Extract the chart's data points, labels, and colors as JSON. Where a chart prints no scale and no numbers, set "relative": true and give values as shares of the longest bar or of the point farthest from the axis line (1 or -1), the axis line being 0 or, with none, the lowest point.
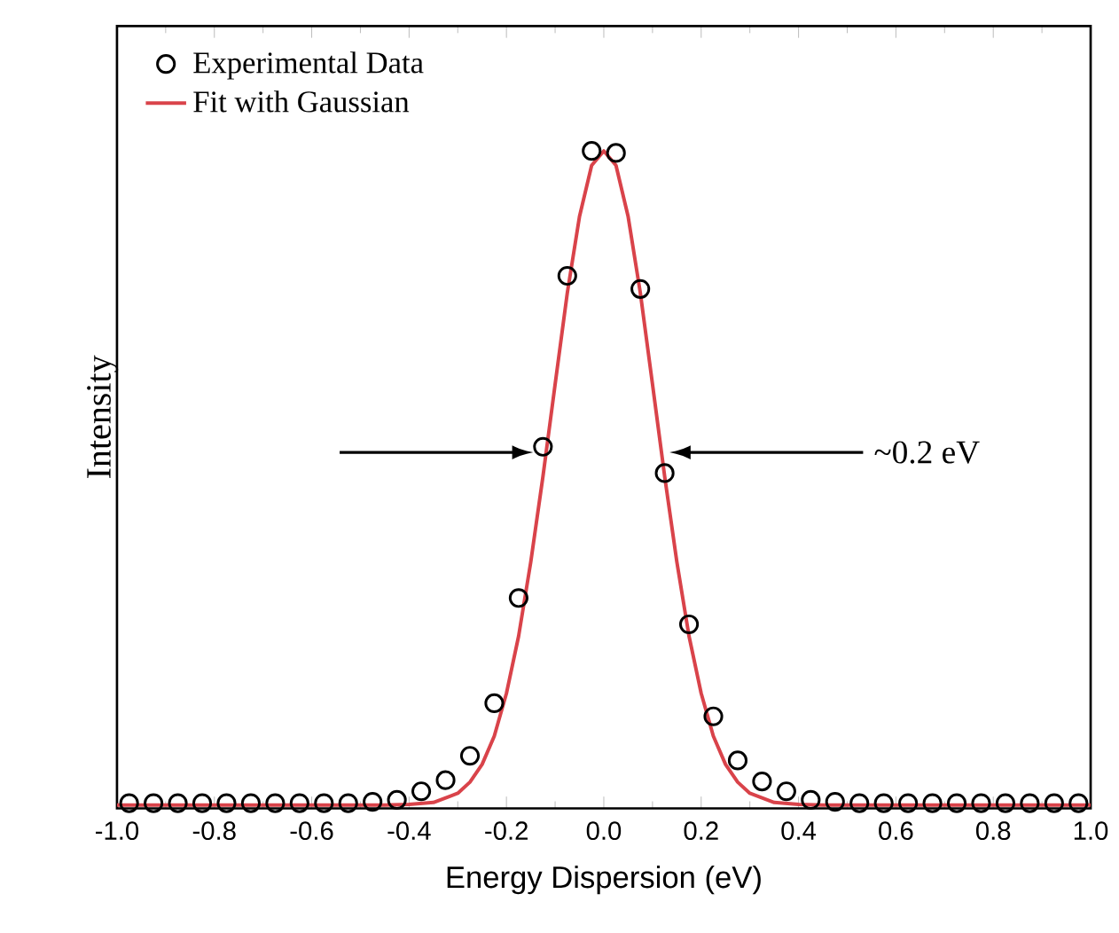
{
  "chart_data": {
    "type": "scatter",
    "xlabel": "Energy Dispersion (eV)",
    "ylabel": "Intensity",
    "relative": true,
    "legend": "top left",
    "xlim": [
      -1.0,
      1.0
    ],
    "xticks": [
      {
        "value": -1.0,
        "label": "-1.0"
      },
      {
        "value": -0.8,
        "label": "-0.8"
      },
      {
        "value": -0.6,
        "label": "-0.6"
      },
      {
        "value": -0.4,
        "label": "-0.4"
      },
      {
        "value": -0.2,
        "label": "-0.2"
      },
      {
        "value": 0.0,
        "label": "0.0"
      },
      {
        "value": 0.2,
        "label": "0.2"
      },
      {
        "value": 0.4,
        "label": "0.4"
      },
      {
        "value": 0.6,
        "label": "0.6"
      },
      {
        "value": 0.8,
        "label": "0.8"
      },
      {
        "value": 1.0,
        "label": "1.0"
      }
    ],
    "series": [
      {
        "name": "Experimental Data",
        "marker": "circle",
        "color": "#000000",
        "x": [
          -0.975,
          -0.925,
          -0.875,
          -0.825,
          -0.775,
          -0.725,
          -0.675,
          -0.625,
          -0.575,
          -0.525,
          -0.475,
          -0.425,
          -0.375,
          -0.325,
          -0.275,
          -0.225,
          -0.175,
          -0.125,
          -0.075,
          -0.025,
          0.025,
          0.075,
          0.125,
          0.175,
          0.225,
          0.275,
          0.325,
          0.375,
          0.425,
          0.475,
          0.525,
          0.575,
          0.625,
          0.675,
          0.725,
          0.775,
          0.825,
          0.875,
          0.925,
          0.975
        ],
        "values": [
          0.008,
          0.008,
          0.008,
          0.008,
          0.008,
          0.008,
          0.008,
          0.008,
          0.008,
          0.008,
          0.01,
          0.013,
          0.026,
          0.043,
          0.08,
          0.16,
          0.32,
          0.55,
          0.81,
          1.0,
          0.997,
          0.79,
          0.51,
          0.28,
          0.14,
          0.073,
          0.041,
          0.026,
          0.013,
          0.01,
          0.008,
          0.008,
          0.008,
          0.008,
          0.008,
          0.008,
          0.008,
          0.008,
          0.008,
          0.008
        ]
      },
      {
        "name": "Fit with Gaussian",
        "type": "line",
        "marker": "none",
        "line_style": "solid",
        "color": "#d9434a",
        "x": [
          -1.0,
          -0.8,
          -0.6,
          -0.45,
          -0.4,
          -0.35,
          -0.3,
          -0.275,
          -0.25,
          -0.225,
          -0.2,
          -0.175,
          -0.15,
          -0.125,
          -0.1,
          -0.075,
          -0.05,
          -0.025,
          0.0,
          0.025,
          0.05,
          0.075,
          0.1,
          0.125,
          0.15,
          0.175,
          0.2,
          0.225,
          0.25,
          0.275,
          0.3,
          0.35,
          0.4,
          0.45,
          0.6,
          0.8,
          1.0
        ],
        "values": [
          0.005,
          0.005,
          0.005,
          0.005,
          0.006,
          0.009,
          0.023,
          0.04,
          0.067,
          0.11,
          0.175,
          0.262,
          0.375,
          0.505,
          0.645,
          0.784,
          0.9,
          0.978,
          1.0,
          0.978,
          0.9,
          0.784,
          0.645,
          0.505,
          0.375,
          0.262,
          0.175,
          0.11,
          0.067,
          0.04,
          0.023,
          0.009,
          0.006,
          0.005,
          0.005,
          0.005,
          0.005
        ]
      }
    ],
    "annotations": [
      "~0.2 eV"
    ]
  }
}
